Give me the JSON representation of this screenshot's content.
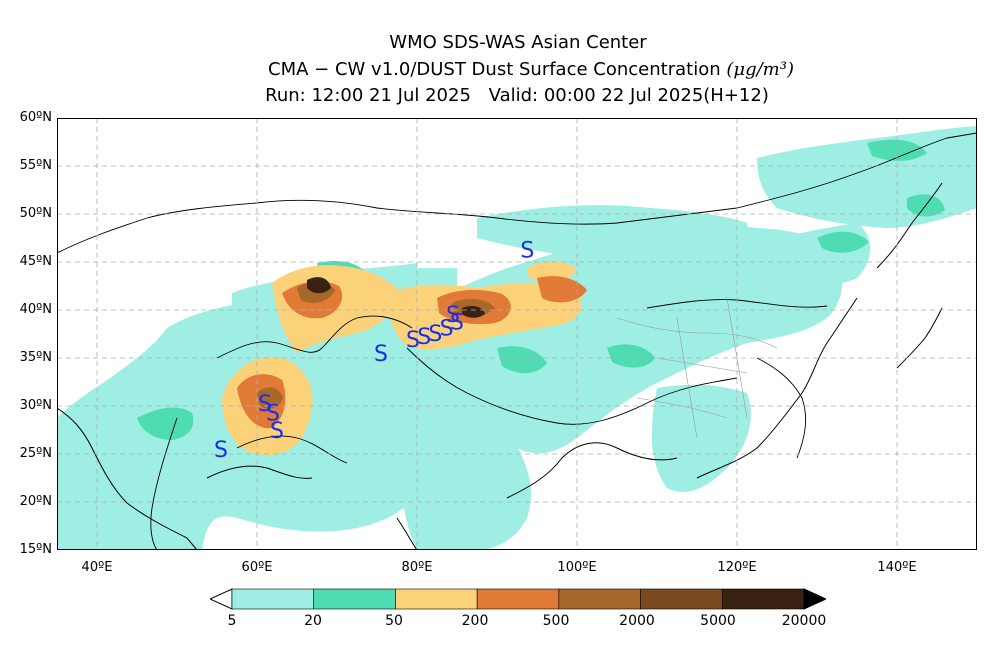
{
  "title": {
    "line1": "WMO SDS-WAS Asian Center",
    "line2_model": "CMA − CW v1.0/DUST Dust Surface Concentration",
    "line2_unit": "(μg/m³)",
    "run": "Run: 12:00 21 Jul 2025",
    "valid": "Valid: 00:00 22 Jul 2025(H+12)"
  },
  "axes": {
    "lat_labels": [
      "60ºN",
      "55ºN",
      "50ºN",
      "45ºN",
      "40ºN",
      "35ºN",
      "30ºN",
      "25ºN",
      "20ºN",
      "15ºN"
    ],
    "lon_labels": [
      "40ºE",
      "60ºE",
      "80ºE",
      "100ºE",
      "120ºE",
      "140ºE"
    ],
    "lat_range": [
      15,
      60
    ],
    "lon_range": [
      35,
      150
    ]
  },
  "colorbar": {
    "labels": [
      "5",
      "20",
      "50",
      "200",
      "500",
      "2000",
      "5000",
      "20000"
    ],
    "colors": [
      "#9eeee3",
      "#4fdcb3",
      "#fbd27a",
      "#e07a36",
      "#a8682c",
      "#7a4a1e",
      "#3a2212"
    ]
  },
  "colors": {
    "ocean": "#ffffff",
    "land_low": "#9eeee3",
    "land_mid": "#4fdcb3",
    "coast": "#000000",
    "province": "#999999",
    "grid": "#b0b0b0",
    "storm_marker": "#1a2fe6"
  },
  "legend_marker": "S",
  "storm_markers": [
    {
      "lon": 93.8,
      "lat": 46.3
    },
    {
      "lon": 55.5,
      "lat": 25.5
    },
    {
      "lon": 61.0,
      "lat": 30.3
    },
    {
      "lon": 62.0,
      "lat": 29.3
    },
    {
      "lon": 62.5,
      "lat": 27.5
    },
    {
      "lon": 75.5,
      "lat": 35.5
    },
    {
      "lon": 79.5,
      "lat": 37.0
    },
    {
      "lon": 80.9,
      "lat": 37.3
    },
    {
      "lon": 82.3,
      "lat": 37.6
    },
    {
      "lon": 83.7,
      "lat": 38.2
    },
    {
      "lon": 85.0,
      "lat": 38.8
    },
    {
      "lon": 84.5,
      "lat": 39.6
    }
  ]
}
